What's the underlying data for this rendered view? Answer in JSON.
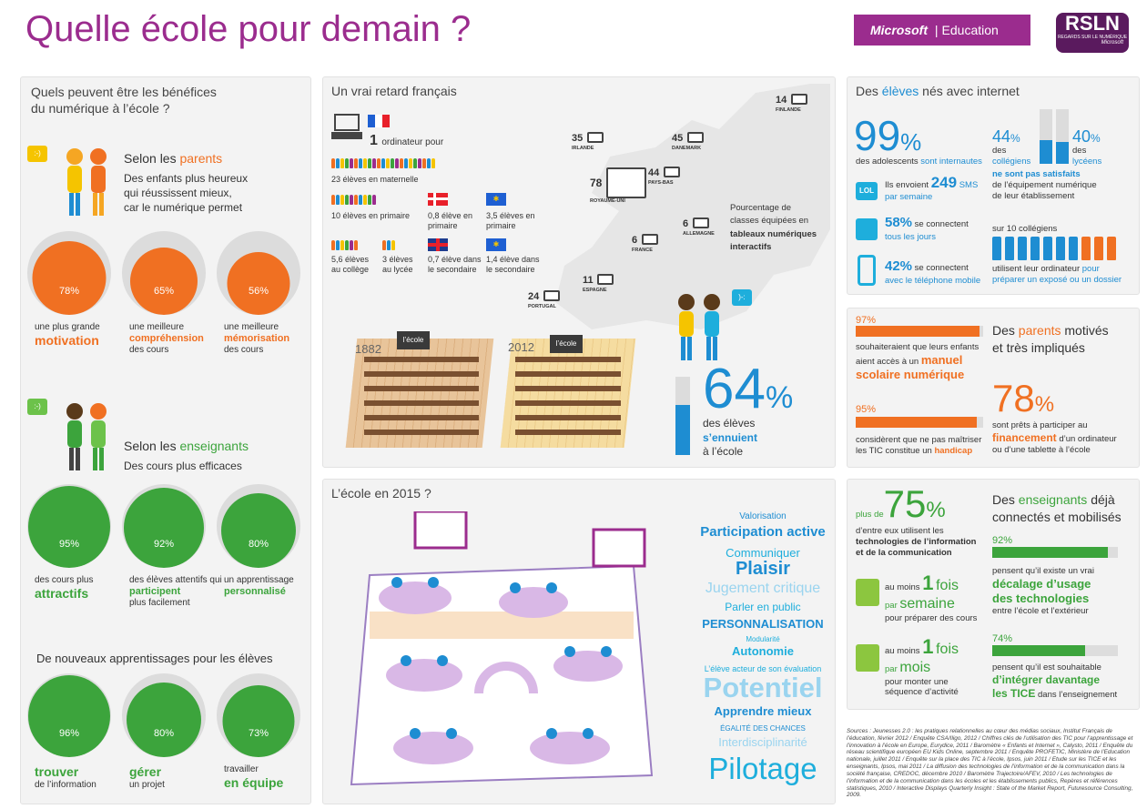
{
  "title": "Quelle école pour demain ?",
  "brand": {
    "microsoft": "Microsoft",
    "education": "Education",
    "rsln": "RSLN",
    "rsln_sub": "REGARDS SUR LE NUMÉRIQUE",
    "rsln_ms": "Microsoft"
  },
  "colors": {
    "purple": "#9b2c8e",
    "orange": "#f07022",
    "green": "#3ca43c",
    "blue": "#1e8dd2",
    "grey": "#dcdcdc"
  },
  "left": {
    "heading": "Quels peuvent être les bénéfices\ndu numérique à l’école ?",
    "parents_pre": "Selon les ",
    "parents_word": "parents",
    "parents_desc": "Des enfants plus heureux\nqui réussissent mieux,\ncar le numérique permet",
    "parents_stats": [
      {
        "pct": 78,
        "label": "78%",
        "pre": "une plus grande",
        "key": "motivation",
        "post": ""
      },
      {
        "pct": 65,
        "label": "65%",
        "pre": "une meilleure",
        "key": "compréhension",
        "post": "des cours"
      },
      {
        "pct": 56,
        "label": "56%",
        "pre": "une meilleure",
        "key": "mémorisation",
        "post": "des cours"
      }
    ],
    "teachers_pre": "Selon les ",
    "teachers_word": "enseignants",
    "teachers_desc": "Des cours plus efficaces",
    "teachers_stats": [
      {
        "pct": 95,
        "label": "95%",
        "pre": "des cours plus",
        "key": "attractifs",
        "post": ""
      },
      {
        "pct": 92,
        "label": "92%",
        "pre": "des élèves attentifs qui",
        "key": "participent",
        "post": "plus facilement"
      },
      {
        "pct": 80,
        "label": "80%",
        "pre": "un apprentissage",
        "key": "personnalisé",
        "post": ""
      }
    ],
    "learn_heading": "De nouveaux apprentissages pour les élèves",
    "learn_stats": [
      {
        "pct": 96,
        "label": "96%",
        "pre": "",
        "key": "trouver",
        "post": "de l’information"
      },
      {
        "pct": 80,
        "label": "80%",
        "pre": "",
        "key": "gérer",
        "post": "un projet"
      },
      {
        "pct": 73,
        "label": "73%",
        "pre": "travailler",
        "key": "en équipe",
        "post": ""
      }
    ],
    "smiley": ":-)"
  },
  "middle": {
    "heading": "Un vrai retard français",
    "one": "1",
    "one_label": "ordinateur pour",
    "rows": [
      {
        "text": "23 élèves en maternelle",
        "bold": "maternelle"
      },
      {
        "text": "10 élèves en primaire"
      },
      {
        "text": "0,8 élève en primaire"
      },
      {
        "text": "3,5 élèves en primaire"
      },
      {
        "text": "5,6 élèves au collège"
      },
      {
        "text": "3 élèves au lycée"
      },
      {
        "text": "0,7 élève dans le secondaire"
      },
      {
        "text": "1,4 élève dans le secondaire"
      }
    ],
    "map_note_1": "Pourcentage de",
    "map_note_2": "classes équipées en",
    "map_note_3": "tableaux numériques",
    "map_note_4": "interactifs",
    "countries": [
      {
        "v": "14",
        "n": "FINLANDE"
      },
      {
        "v": "35",
        "n": "IRLANDE"
      },
      {
        "v": "45",
        "n": "DANEMARK"
      },
      {
        "v": "78",
        "n": "ROYAUME-UNI"
      },
      {
        "v": "44",
        "n": "PAYS-BAS"
      },
      {
        "v": "6",
        "n": "FRANCE"
      },
      {
        "v": "6",
        "n": "ALLEMAGNE"
      },
      {
        "v": "11",
        "n": "ESPAGNE"
      },
      {
        "v": "24",
        "n": "PORTUGAL"
      }
    ],
    "y1882": "1882",
    "y2012": "2012",
    "board": "l’école",
    "bored_pct": 64,
    "bored_big": "64",
    "bored_unit": "%",
    "bored_l1": "des élèves",
    "bored_l2": "s’ennuient",
    "bored_l3": "à l’école",
    "heading2015": "L’école en 2015 ?",
    "cloud": [
      "Valorisation",
      "Participation active",
      "Communiquer",
      "Plaisir",
      "Jugement critique",
      "Parler en public",
      "PERSONNALISATION",
      "Modularité",
      "Autonomie",
      "L’élève acteur de son évaluation",
      "Potentiel",
      "Apprendre mieux",
      "ÉGALITÉ DES CHANCES",
      "Interdisciplinarité",
      "Pilotage"
    ]
  },
  "right": {
    "students_pre": "Des ",
    "students_word": "élèves",
    "students_post": " nés avec internet",
    "s99": "99",
    "pct": "%",
    "s99_a": "des adolescents ",
    "s99_b": "sont internautes",
    "s44": "44",
    "s44_pct": "%",
    "s44_a": "des",
    "s44_b": "collégiens",
    "s40": "40",
    "s40_pct": "%",
    "s40_a": "des",
    "s40_b": "lycéens",
    "s4440_c": "ne sont pas satisfaits",
    "s4440_d": "de l’équipement numérique",
    "s4440_e": "de leur établissement",
    "sms_icon": "LOL",
    "sms_a": "Ils envoient",
    "sms_n": "249",
    "sms_u": "SMS",
    "sms_b": "par semaine",
    "s58": "58%",
    "s58_a": "se connectent",
    "s58_b": "tous les jours",
    "s42": "42%",
    "s42_a": "se connectent",
    "s42_b": "avec le téléphone mobile",
    "ten": "sur 10 collégiens",
    "ten_a": "utilisent leur ordinateur ",
    "ten_b": "pour",
    "ten_c": "préparer un exposé ou un dossier",
    "p97": 97,
    "p97_l": "97%",
    "p97_a": "souhaiteraient que leurs enfants",
    "p97_b": "aient accès à un",
    "p97_c": "manuel",
    "p97_d": "scolaire numérique",
    "p95": 95,
    "p95_l": "95%",
    "p95_a": "considèrent que ne pas maîtriser",
    "p95_b": "les TIC constitue un",
    "p95_c": "handicap",
    "parents_pre": "Des ",
    "parents_word": "parents",
    "parents_post": " motivés",
    "parents_l2": "et très impliqués",
    "p78": "78",
    "p78_pct": "%",
    "p78_a": "sont prêts à participer au",
    "p78_b": "financement",
    "p78_c": "d’un ordinateur",
    "p78_d": "ou d’une tablette à l’école",
    "t75_pre": "plus de",
    "t75": "75",
    "t75_pct": "%",
    "t75_a": "d’entre eux utilisent les",
    "t75_b": "technologies de l’information",
    "t75_c": "et de la communication",
    "teach_pre": "Des ",
    "teach_word": "enseignants",
    "teach_post": " déjà",
    "teach_l2": "connectés et mobilisés",
    "f1_a": "au moins",
    "f1_n": "1",
    "f1_b": "fois",
    "f1_c": "par",
    "f1_d": "semaine",
    "f1_e": "pour préparer des cours",
    "f2_a": "au moins",
    "f2_n": "1",
    "f2_b": "fois",
    "f2_c": "par",
    "f2_d": "mois",
    "f2_e": "pour monter une",
    "f2_f": "séquence d’activité",
    "t92": 92,
    "t92_l": "92%",
    "t92_a": "pensent qu’il existe un vrai",
    "t92_b": "décalage d’usage",
    "t92_c": "des technologies",
    "t92_d": "entre l’école et l’extérieur",
    "t74": 74,
    "t74_l": "74%",
    "t74_a": "pensent qu’il est souhaitable",
    "t74_b": "d’intégrer davantage",
    "t74_c": "les TICE",
    "t74_d": " dans l’enseignement",
    "sources": "Sources : Jeunesses 2.0 : les pratiques relationnelles au cœur des médias sociaux, Institut Français de l’éducation, février 2012 / Enquête CSA/Iligo, 2012 / Chiffres clés de l’utilisation des TIC pour l’apprentissage et l’innovation à l’école en Europe, Eurydice, 2011 / Baromètre « Enfants et Internet », Calysto, 2011 / Enquête du réseau scientifique européen EU Kids Online, septembre 2011 / Enquête PROFETIC, Ministère de l’Education nationale, juillet 2011 / Enquête sur la place des TIC à l’école, Ipsos, juin 2011 / Etude sur les TICE et les enseignants, Ipsos, mai 2011 / La diffusion des technologies de l’information et de la communication dans la société française, CREDOC, décembre 2010 / Baromètre Trajectoire/AFEV, 2010 / Les technologies de l’information et de la communication dans les écoles et les établissements publics, Repères et références statistiques, 2010 / Interactive Displays Quarterly Insight : State of the Market Report, Futuresource Consulting, 2009."
  }
}
